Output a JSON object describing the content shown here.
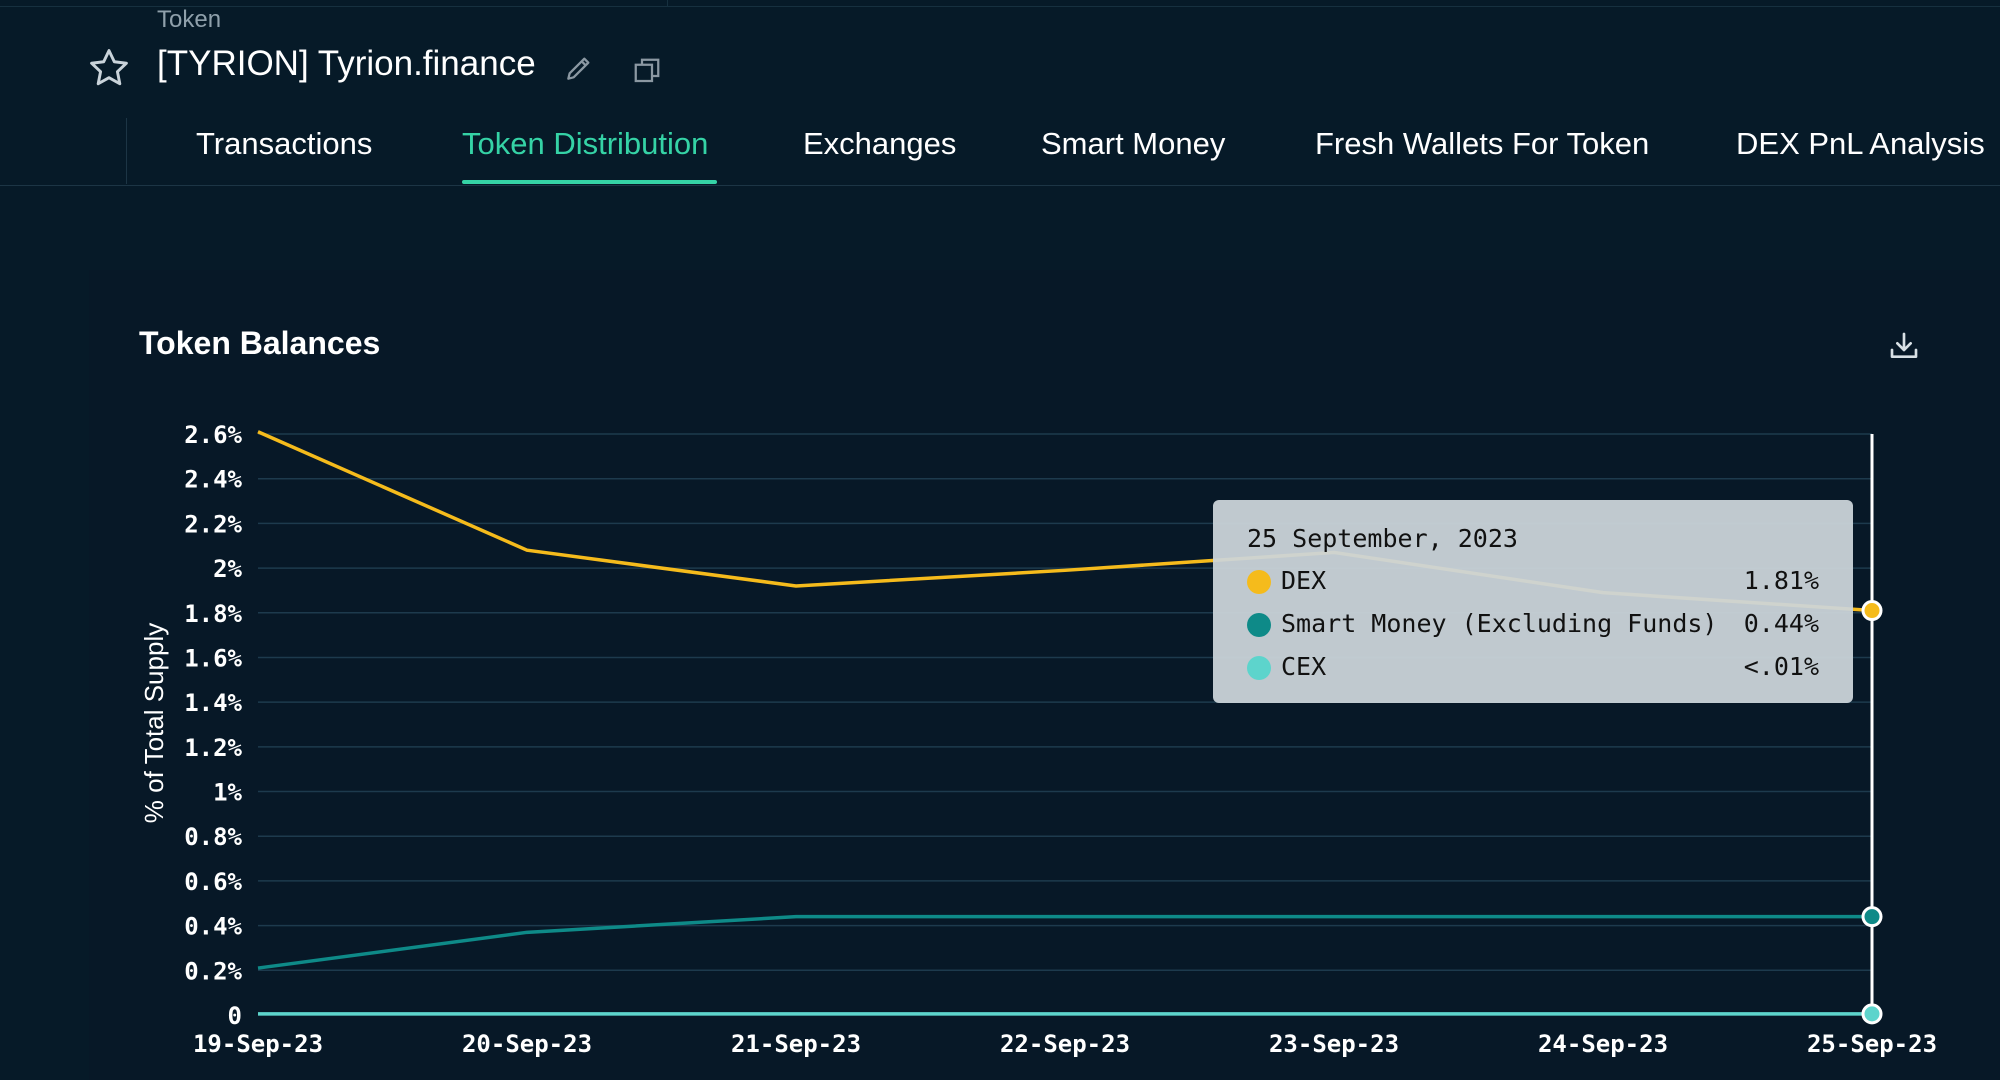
{
  "header": {
    "breadcrumb": "Token",
    "title": "[TYRION] Tyrion.finance"
  },
  "tabs": [
    {
      "label": "Transactions",
      "active": false
    },
    {
      "label": "Token Distribution",
      "active": true
    },
    {
      "label": "Exchanges",
      "active": false
    },
    {
      "label": "Smart Money",
      "active": false
    },
    {
      "label": "Fresh Wallets For Token",
      "active": false
    },
    {
      "label": "DEX PnL Analysis",
      "active": false
    }
  ],
  "card": {
    "title": "Token Balances",
    "download_icon": "download-icon"
  },
  "colors": {
    "accent": "#35d3a6",
    "background": "#061a28",
    "card": "#071827",
    "dex": "#f5bb1c",
    "smart_money": "#0e8a88",
    "cex": "#5dd4cc"
  },
  "tooltip": {
    "date": "25 September, 2023",
    "rows": [
      {
        "name": "DEX",
        "value": "1.81%",
        "color": "#f5bb1c"
      },
      {
        "name": "Smart Money (Excluding Funds)",
        "value": "0.44%",
        "color": "#0e8a88"
      },
      {
        "name": "CEX",
        "value": "<.01%",
        "color": "#5dd4cc"
      }
    ]
  },
  "chart_data": {
    "type": "line",
    "title": "Token Balances",
    "xlabel": "",
    "ylabel": "% of Total Supply",
    "x": [
      "19-Sep-23",
      "20-Sep-23",
      "21-Sep-23",
      "22-Sep-23",
      "23-Sep-23",
      "24-Sep-23",
      "25-Sep-23"
    ],
    "y_ticks": [
      "0",
      "0.2%",
      "0.4%",
      "0.6%",
      "0.8%",
      "1%",
      "1.2%",
      "1.4%",
      "1.6%",
      "1.8%",
      "2%",
      "2.2%",
      "2.4%",
      "2.6%"
    ],
    "ylim": [
      0,
      2.6
    ],
    "grid": true,
    "series": [
      {
        "name": "DEX",
        "color": "#f5bb1c",
        "values": [
          2.61,
          2.08,
          1.92,
          1.99,
          2.07,
          1.89,
          1.81
        ]
      },
      {
        "name": "Smart Money (Excluding Funds)",
        "color": "#0e8a88",
        "values": [
          0.21,
          0.37,
          0.44,
          0.44,
          0.44,
          0.44,
          0.44
        ]
      },
      {
        "name": "CEX",
        "color": "#5dd4cc",
        "values": [
          0.005,
          0.005,
          0.005,
          0.005,
          0.005,
          0.005,
          0.005
        ]
      }
    ],
    "highlight_index": 6
  }
}
